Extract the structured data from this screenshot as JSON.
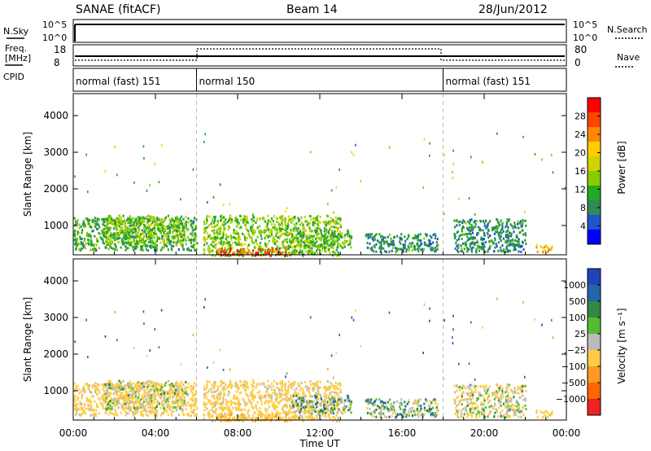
{
  "header": {
    "title": "SANAE (fitACF)",
    "beam": "Beam 14",
    "date": "28/Jun/2012"
  },
  "top_panels": {
    "left_labels": [
      "N.Sky",
      "Freq.",
      "[MHz]",
      "CPID"
    ],
    "right_labels": [
      "N.Search",
      "Nave"
    ],
    "nsky_ticks": [
      "10^5",
      "10^0"
    ],
    "nsearch_ticks": [
      "10^5",
      "10^0"
    ],
    "freq_ticks": [
      "18",
      "8"
    ],
    "nave_ticks": [
      "80",
      "0"
    ]
  },
  "cpid": [
    {
      "label": "normal (fast) 151",
      "start_hour": 0,
      "end_hour": 6
    },
    {
      "label": "normal 150",
      "start_hour": 6,
      "end_hour": 18
    },
    {
      "label": "normal (fast) 151",
      "start_hour": 18,
      "end_hour": 24
    }
  ],
  "power_panel": {
    "ylabel": "Slant Range [km]",
    "yticks": [
      "4000",
      "3000",
      "2000",
      "1000"
    ],
    "colorbar": {
      "label": "Power [dB]",
      "ticks": [
        "28",
        "24",
        "20",
        "16",
        "12",
        "8",
        "4"
      ],
      "colors": [
        "#ff0000",
        "#ff4400",
        "#ff8800",
        "#ffcc00",
        "#d2d200",
        "#88cc00",
        "#22aa22",
        "#2e8b57",
        "#2255cc",
        "#0000ff"
      ]
    }
  },
  "velocity_panel": {
    "ylabel": "Slant Range [km]",
    "yticks": [
      "4000",
      "3000",
      "2000",
      "1000"
    ],
    "colorbar": {
      "label": "Velocity  [m s⁻¹]",
      "ticks": [
        "1000",
        "500",
        "100",
        "25",
        "−25",
        "−100",
        "−500",
        "−1000"
      ],
      "colors": [
        "#2244bb",
        "#2266aa",
        "#338844",
        "#55bb33",
        "#bbbbbb",
        "#ffcc44",
        "#ff9922",
        "#ff6600",
        "#ee2222"
      ]
    }
  },
  "xaxis": {
    "ticks": [
      "00:00",
      "04:00",
      "08:00",
      "12:00",
      "16:00",
      "20:00",
      "00:00"
    ],
    "label": "Time UT"
  },
  "chart_data": {
    "type": "heatmap",
    "title": "SANAE (fitACF)",
    "xlabel": "Time UT",
    "ylabel": "Slant Range [km]",
    "xlim_hours": [
      0,
      24
    ],
    "ylim_km": [
      200,
      4600
    ],
    "panels": [
      "Power [dB]",
      "Velocity [m s^-1]"
    ],
    "power_scale_db": [
      0,
      32
    ],
    "velocity_scale": [
      -1000,
      1000
    ],
    "echo_regions": [
      {
        "start_hour": 0.0,
        "end_hour": 6.0,
        "min_km": 350,
        "max_km": 1250,
        "power_db": 10,
        "velocity": -200
      },
      {
        "start_hour": 1.5,
        "end_hour": 5.5,
        "min_km": 500,
        "max_km": 1300,
        "power_db": 14,
        "velocity": -100
      },
      {
        "start_hour": 6.3,
        "end_hour": 13.0,
        "min_km": 200,
        "max_km": 1300,
        "power_db": 14,
        "velocity": -200
      },
      {
        "start_hour": 7.0,
        "end_hour": 10.5,
        "min_km": 200,
        "max_km": 400,
        "power_db": 28,
        "velocity": -400
      },
      {
        "start_hour": 10.5,
        "end_hour": 13.5,
        "min_km": 400,
        "max_km": 900,
        "power_db": 12,
        "velocity": 0
      },
      {
        "start_hour": 14.2,
        "end_hour": 17.8,
        "min_km": 300,
        "max_km": 800,
        "power_db": 8,
        "velocity": 0
      },
      {
        "start_hour": 18.5,
        "end_hour": 22.0,
        "min_km": 300,
        "max_km": 1200,
        "power_db": 8,
        "velocity": -100
      },
      {
        "start_hour": 22.5,
        "end_hour": 23.3,
        "min_km": 300,
        "max_km": 500,
        "power_db": 22,
        "velocity": -300
      }
    ]
  }
}
